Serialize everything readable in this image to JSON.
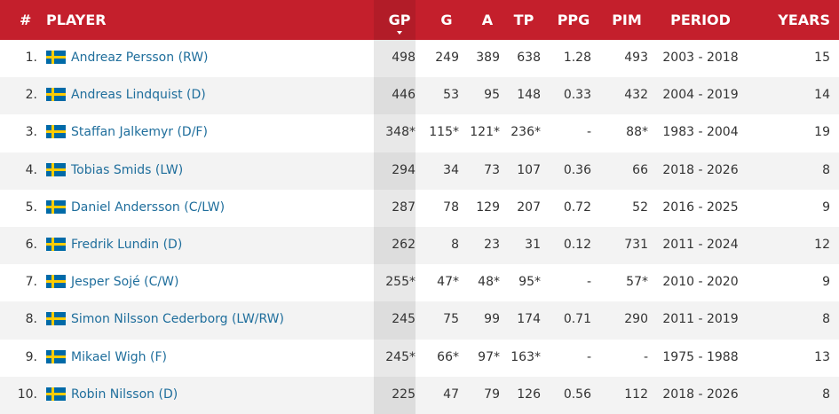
{
  "table": {
    "columns": [
      "#",
      "PLAYER",
      "GP",
      "G",
      "A",
      "TP",
      "PPG",
      "PIM",
      "PERIOD",
      "YEARS"
    ],
    "rows": [
      [
        "1.",
        "Andreaz Persson (RW)",
        "498",
        "249",
        "389",
        "638",
        "1.28",
        "493",
        "2003 - 2018",
        "15"
      ],
      [
        "2.",
        "Andreas Lindquist (D)",
        "446",
        "53",
        "95",
        "148",
        "0.33",
        "432",
        "2004 - 2019",
        "14"
      ],
      [
        "3.",
        "Staffan Jalkemyr (D/F)",
        "348*",
        "115*",
        "121*",
        "236*",
        "-",
        "88*",
        "1983 - 2004",
        "19"
      ],
      [
        "4.",
        "Tobias Smids (LW)",
        "294",
        "34",
        "73",
        "107",
        "0.36",
        "66",
        "2018 - 2026",
        "8"
      ],
      [
        "5.",
        "Daniel Andersson (C/LW)",
        "287",
        "78",
        "129",
        "207",
        "0.72",
        "52",
        "2016 - 2025",
        "9"
      ],
      [
        "6.",
        "Fredrik Lundin (D)",
        "262",
        "8",
        "23",
        "31",
        "0.12",
        "731",
        "2011 - 2024",
        "12"
      ],
      [
        "7.",
        "Jesper Sojé (C/W)",
        "255*",
        "47*",
        "48*",
        "95*",
        "-",
        "57*",
        "2010 - 2020",
        "9"
      ],
      [
        "8.",
        "Simon Nilsson Cederborg (LW/RW)",
        "245",
        "75",
        "99",
        "174",
        "0.71",
        "290",
        "2011 - 2019",
        "8"
      ],
      [
        "9.",
        "Mikael Wigh (F)",
        "245*",
        "66*",
        "97*",
        "163*",
        "-",
        "-",
        "1975 - 1988",
        "13"
      ],
      [
        "10.",
        "Robin Nilsson (D)",
        "225",
        "47",
        "79",
        "126",
        "0.56",
        "112",
        "2018 - 2026",
        "8"
      ]
    ]
  }
}
